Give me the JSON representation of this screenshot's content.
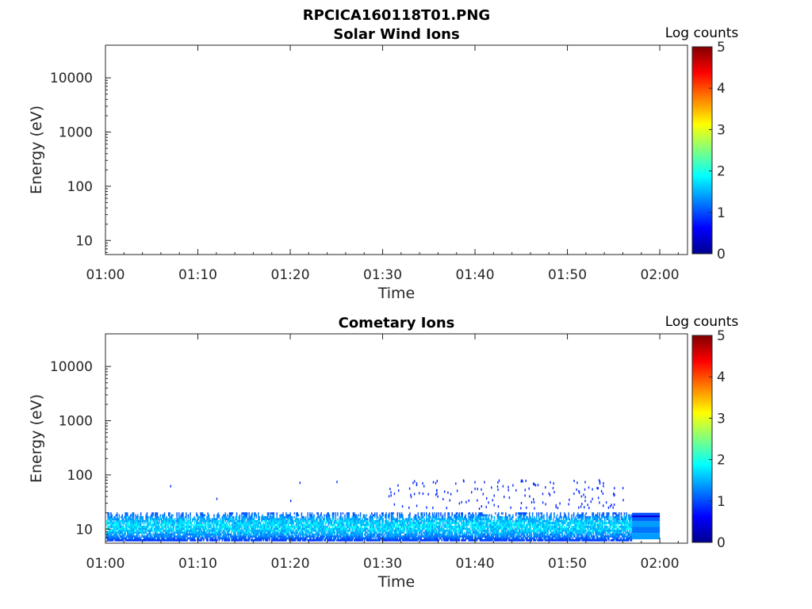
{
  "figure": {
    "title": "RPCICA160118T01.PNG"
  },
  "chart_data": [
    {
      "type": "heatmap",
      "title": "Solar Wind Ions",
      "xlabel": "Time",
      "ylabel": "Energy (eV)",
      "x_tick_labels": [
        "01:00",
        "01:10",
        "01:20",
        "01:30",
        "01:40",
        "01:50",
        "02:00"
      ],
      "xlim": [
        "01:00",
        "02:03"
      ],
      "y_scale": "log",
      "y_tick_values": [
        10,
        100,
        1000,
        10000
      ],
      "y_tick_labels": [
        "10",
        "100",
        "1000",
        "10000"
      ],
      "ylim": [
        5.5,
        40000
      ],
      "colorbar": {
        "label": "Log counts",
        "range": [
          0,
          5
        ],
        "tick_labels": [
          "0",
          "1",
          "2",
          "3",
          "4",
          "5"
        ],
        "colormap": "jet"
      },
      "data": "empty"
    },
    {
      "type": "heatmap",
      "title": "Cometary Ions",
      "xlabel": "Time",
      "ylabel": "Energy (eV)",
      "x_tick_labels": [
        "01:00",
        "01:10",
        "01:20",
        "01:30",
        "01:40",
        "01:50",
        "02:00"
      ],
      "xlim": [
        "01:00",
        "02:03"
      ],
      "y_scale": "log",
      "y_tick_values": [
        10,
        100,
        1000,
        10000
      ],
      "y_tick_labels": [
        "10",
        "100",
        "1000",
        "10000"
      ],
      "ylim": [
        5.5,
        40000
      ],
      "colorbar": {
        "label": "Log counts",
        "range": [
          0,
          5
        ],
        "tick_labels": [
          "0",
          "1",
          "2",
          "3",
          "4",
          "5"
        ],
        "colormap": "jet"
      },
      "data": {
        "main_band": {
          "time": [
            "01:00",
            "01:57"
          ],
          "energy_ev": [
            6,
            20
          ],
          "log_counts_range": [
            0.6,
            2.0
          ]
        },
        "sparse_upper": {
          "time": [
            "01:30",
            "01:56"
          ],
          "energy_ev": [
            25,
            85
          ],
          "log_counts": 0.8
        },
        "flat_tail": {
          "time": [
            "01:57",
            "02:00"
          ],
          "energy_ev": [
            6.5,
            20
          ],
          "log_counts_range": [
            1.0,
            1.5
          ]
        }
      }
    }
  ]
}
